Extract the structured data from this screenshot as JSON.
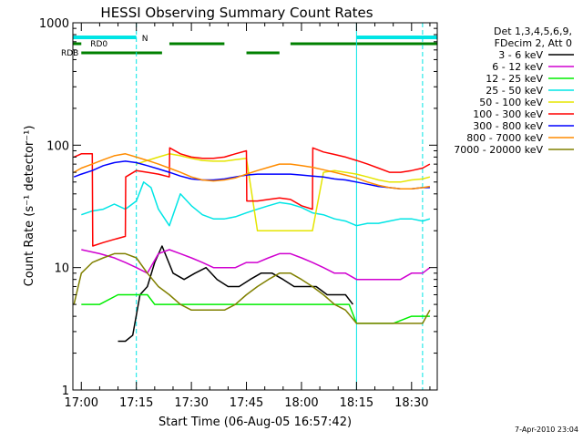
{
  "chart_data": {
    "type": "line",
    "title": "HESSI Observing Summary Count Rates",
    "xlabel": "Start Time (06-Aug-05 16:57:42)",
    "ylabel": "Count Rate (s⁻¹ detector⁻¹)",
    "yscale": "log",
    "ylim": [
      1,
      1000
    ],
    "xlim": [
      "16:57:42",
      "18:37:00"
    ],
    "x_ticks": [
      "17:00",
      "17:15",
      "17:30",
      "17:45",
      "18:00",
      "18:15",
      "18:30"
    ],
    "y_ticks": [
      "1",
      "10",
      "100",
      "1000"
    ],
    "legend_position": "right",
    "legend_header": [
      "Det 1,3,4,5,6,9,",
      "FDecim 2, Att 0"
    ],
    "series": [
      {
        "name": "3 - 6 keV",
        "color": "#000000",
        "x": [
          "17:10",
          "17:12",
          "17:14",
          "17:16",
          "17:18",
          "17:20",
          "17:22",
          "17:25",
          "17:28",
          "17:31",
          "17:34",
          "17:37",
          "17:40",
          "17:43",
          "17:46",
          "17:49",
          "17:52",
          "17:55",
          "17:58",
          "18:01",
          "18:04",
          "18:07",
          "18:10",
          "18:12",
          "18:14"
        ],
        "y": [
          2.5,
          2.5,
          2.8,
          6,
          7,
          11,
          15,
          9,
          8,
          9,
          10,
          8,
          7,
          7,
          8,
          9,
          9,
          8,
          7,
          7,
          7,
          6,
          6,
          6,
          5
        ]
      },
      {
        "name": "6 - 12 keV",
        "color": "#d000d0",
        "x": [
          "17:00",
          "17:05",
          "17:09",
          "17:12",
          "17:15",
          "17:18",
          "17:21",
          "17:24",
          "17:27",
          "17:30",
          "17:33",
          "17:36",
          "17:39",
          "17:42",
          "17:45",
          "17:48",
          "17:51",
          "17:54",
          "17:57",
          "18:00",
          "18:03",
          "18:06",
          "18:09",
          "18:12",
          "18:15",
          "18:18",
          "18:21",
          "18:24",
          "18:27",
          "18:30",
          "18:33",
          "18:35"
        ],
        "y": [
          14,
          13,
          12,
          11,
          10,
          9,
          13,
          14,
          13,
          12,
          11,
          10,
          10,
          10,
          11,
          11,
          12,
          13,
          13,
          12,
          11,
          10,
          9,
          9,
          8,
          8,
          8,
          8,
          8,
          9,
          9,
          10
        ]
      },
      {
        "name": "12 - 25 keV",
        "color": "#00ee00",
        "x": [
          "17:00",
          "17:05",
          "17:10",
          "17:13",
          "17:15",
          "17:18",
          "17:20",
          "17:23",
          "17:26",
          "17:30",
          "17:35",
          "17:40",
          "17:45",
          "17:50",
          "17:55",
          "18:00",
          "18:05",
          "18:10",
          "18:13",
          "18:15",
          "18:20",
          "18:25",
          "18:30",
          "18:35"
        ],
        "y": [
          5,
          5,
          6,
          6,
          6,
          6,
          5,
          5,
          5,
          5,
          5,
          5,
          5,
          5,
          5,
          5,
          5,
          5,
          5,
          3.5,
          3.5,
          3.5,
          4,
          4
        ]
      },
      {
        "name": "25 - 50 keV",
        "color": "#00e5e5",
        "x": [
          "17:00",
          "17:03",
          "17:06",
          "17:09",
          "17:12",
          "17:15",
          "17:17",
          "17:19",
          "17:21",
          "17:24",
          "17:27",
          "17:30",
          "17:33",
          "17:36",
          "17:39",
          "17:42",
          "17:45",
          "17:48",
          "17:51",
          "17:54",
          "17:57",
          "18:00",
          "18:03",
          "18:06",
          "18:09",
          "18:12",
          "18:15",
          "18:18",
          "18:21",
          "18:24",
          "18:27",
          "18:30",
          "18:33",
          "18:35"
        ],
        "y": [
          27,
          29,
          30,
          33,
          30,
          35,
          50,
          45,
          30,
          22,
          40,
          32,
          27,
          25,
          25,
          26,
          28,
          30,
          32,
          34,
          33,
          31,
          28,
          27,
          25,
          24,
          22,
          23,
          23,
          24,
          25,
          25,
          24,
          25
        ]
      },
      {
        "name": "50 - 100 keV",
        "color": "#e5e500",
        "x": [
          "17:15",
          "17:18",
          "17:21",
          "17:24",
          "17:27",
          "17:30",
          "17:33",
          "17:36",
          "17:39",
          "17:42",
          "17:45",
          "17:48",
          "17:51",
          "17:54",
          "17:57",
          "18:00",
          "18:03",
          "18:06",
          "18:09",
          "18:12",
          "18:15",
          "18:18",
          "18:21",
          "18:24",
          "18:27",
          "18:30",
          "18:33",
          "18:35"
        ],
        "y": [
          70,
          75,
          80,
          85,
          82,
          78,
          75,
          74,
          74,
          76,
          78,
          20,
          20,
          20,
          20,
          20,
          20,
          60,
          62,
          60,
          58,
          55,
          52,
          50,
          50,
          52,
          53,
          55
        ]
      },
      {
        "name": "100 - 300 keV",
        "color": "#ff0000",
        "x": [
          "16:58",
          "17:00",
          "17:03",
          "17:03.1",
          "17:06",
          "17:09",
          "17:12",
          "17:12.1",
          "17:15",
          "17:18",
          "17:21",
          "17:24",
          "17:24.1",
          "17:27",
          "17:30",
          "17:33",
          "17:36",
          "17:39",
          "17:42",
          "17:45",
          "17:45.1",
          "17:48",
          "17:51",
          "17:54",
          "17:57",
          "18:00",
          "18:03",
          "18:03.1",
          "18:06",
          "18:09",
          "18:12",
          "18:15",
          "18:18",
          "18:21",
          "18:24",
          "18:27",
          "18:30",
          "18:33",
          "18:35"
        ],
        "y": [
          80,
          85,
          85,
          15,
          16,
          17,
          18,
          55,
          62,
          60,
          58,
          55,
          95,
          85,
          80,
          78,
          78,
          80,
          85,
          90,
          35,
          35,
          36,
          37,
          36,
          32,
          30,
          95,
          88,
          84,
          80,
          75,
          70,
          65,
          60,
          60,
          62,
          65,
          70
        ]
      },
      {
        "name": "300 - 800 keV",
        "color": "#0000ff",
        "x": [
          "16:58",
          "17:00",
          "17:03",
          "17:06",
          "17:09",
          "17:12",
          "17:15",
          "17:18",
          "17:21",
          "17:24",
          "17:27",
          "17:30",
          "17:33",
          "17:36",
          "17:39",
          "17:42",
          "17:45",
          "17:48",
          "17:51",
          "17:54",
          "17:57",
          "18:00",
          "18:03",
          "18:06",
          "18:09",
          "18:12",
          "18:15",
          "18:18",
          "18:21",
          "18:24",
          "18:27",
          "18:30",
          "18:33",
          "18:35"
        ],
        "y": [
          55,
          58,
          62,
          68,
          72,
          74,
          72,
          68,
          64,
          60,
          56,
          53,
          52,
          52,
          53,
          55,
          57,
          58,
          58,
          58,
          58,
          57,
          56,
          55,
          53,
          52,
          50,
          48,
          46,
          45,
          44,
          44,
          45,
          45
        ]
      },
      {
        "name": "800 - 7000 keV",
        "color": "#ff8c00",
        "x": [
          "16:58",
          "17:00",
          "17:03",
          "17:06",
          "17:09",
          "17:12",
          "17:15",
          "17:18",
          "17:21",
          "17:24",
          "17:27",
          "17:30",
          "17:33",
          "17:36",
          "17:39",
          "17:42",
          "17:45",
          "17:48",
          "17:51",
          "17:54",
          "17:57",
          "18:00",
          "18:03",
          "18:06",
          "18:09",
          "18:12",
          "18:15",
          "18:18",
          "18:21",
          "18:24",
          "18:27",
          "18:30",
          "18:33",
          "18:35"
        ],
        "y": [
          60,
          65,
          70,
          76,
          82,
          85,
          80,
          75,
          70,
          65,
          60,
          55,
          52,
          51,
          52,
          54,
          58,
          62,
          66,
          70,
          70,
          68,
          66,
          63,
          60,
          57,
          54,
          50,
          47,
          45,
          44,
          44,
          45,
          46
        ]
      },
      {
        "name": "7000 - 20000 keV",
        "color": "#808000",
        "x": [
          "16:58",
          "17:00",
          "17:03",
          "17:06",
          "17:09",
          "17:12",
          "17:15",
          "17:18",
          "17:21",
          "17:24",
          "17:27",
          "17:30",
          "17:33",
          "17:36",
          "17:39",
          "17:42",
          "17:45",
          "17:48",
          "17:51",
          "17:54",
          "17:57",
          "18:00",
          "18:03",
          "18:06",
          "18:09",
          "18:12",
          "18:15",
          "18:18",
          "18:21",
          "18:24",
          "18:27",
          "18:30",
          "18:33",
          "18:35"
        ],
        "y": [
          5,
          9,
          11,
          12,
          13,
          13,
          12,
          9,
          7,
          6,
          5,
          4.5,
          4.5,
          4.5,
          4.5,
          5,
          6,
          7,
          8,
          9,
          9,
          8,
          7,
          6,
          5,
          4.5,
          3.5,
          3.5,
          3.5,
          3.5,
          3.5,
          3.5,
          3.5,
          4.5
        ]
      }
    ],
    "annotations": [
      {
        "label": "N",
        "color": "#00e5e5",
        "segments": [
          [
            "16:57:42",
            "17:15"
          ],
          [
            "18:15",
            "18:37"
          ]
        ]
      },
      {
        "label": "RD0",
        "color": "#008000",
        "segments": [
          [
            "16:57:42",
            "17:00"
          ],
          [
            "17:24",
            "17:39"
          ],
          [
            "17:57",
            "18:37"
          ]
        ]
      },
      {
        "label": "RDB",
        "color": "#008000",
        "segments": [
          [
            "17:00",
            "17:22"
          ],
          [
            "17:45",
            "17:54"
          ]
        ]
      }
    ],
    "vlines_dashed": [
      "17:15",
      "18:33"
    ],
    "vlines_solid": [
      "18:15"
    ],
    "footer": "7-Apr-2010 23:04"
  }
}
